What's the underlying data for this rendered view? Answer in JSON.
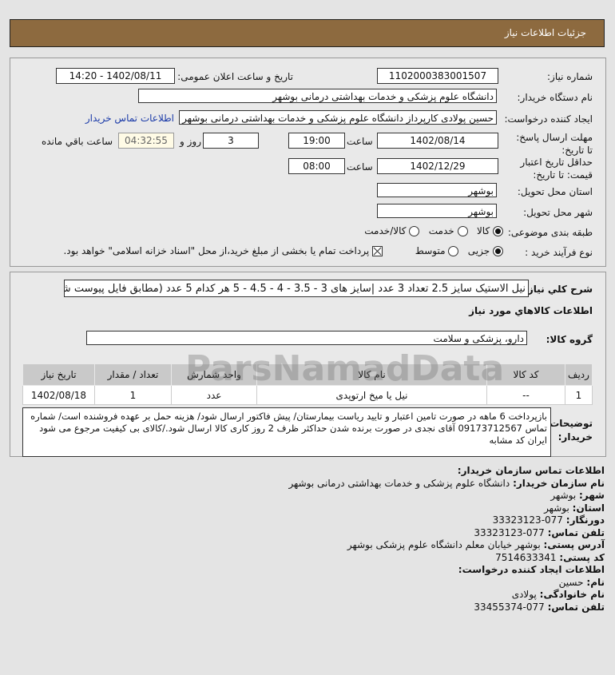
{
  "header": {
    "title": "جزئیات اطلاعات نیاز"
  },
  "form": {
    "need_number_label": "شماره نیاز:",
    "need_number": "1102000383001507",
    "announce_label": "تاریخ و ساعت اعلان عمومی:",
    "announce_value": "1402/08/11 - 14:20",
    "buyer_org_label": "نام دستگاه خریدار:",
    "buyer_org": "دانشگاه علوم پزشکی و خدمات بهداشتی درمانی بوشهر",
    "creator_label": "ایجاد کننده درخواست:",
    "creator": "حسین پولادی کارپرداز دانشگاه علوم پزشکی و خدمات بهداشتی درمانی بوشهر",
    "contact_link": "اطلاعات تماس خریدار",
    "deadline_label": "مهلت ارسال پاسخ: تا تاریخ:",
    "deadline_date": "1402/08/14",
    "time_label": "ساعت",
    "deadline_time": "19:00",
    "days": "3",
    "days_label": "روز و",
    "remaining": "04:32:55",
    "remaining_label": "ساعت باقي مانده",
    "validity_label": "حداقل تاریخ اعتبار قیمت: تا تاریخ:",
    "validity_date": "1402/12/29",
    "validity_time": "08:00",
    "province_label": "استان محل تحویل:",
    "province": "بوشهر",
    "city_label": "شهر محل تحویل:",
    "city": "بوشهر",
    "category_label": "طبقه بندی موضوعی:",
    "category_options": [
      "کالا",
      "خدمت",
      "کالا/خدمت"
    ],
    "category_selected": "کالا",
    "process_label": "نوع فرآیند خرید :",
    "process_options": [
      "جزیی",
      "متوسط"
    ],
    "process_selected": "جزیی",
    "payment_note": "پرداخت تمام یا بخشی از مبلغ خرید،از محل \"اسناد خزانه اسلامی\" خواهد بود."
  },
  "details": {
    "summary_label": "شرح کلي نیاز:",
    "summary": "نیل الاستیک سایز 2.5 تعداد 3 عدد |سایز های 3 - 3.5 - 4 - 4.5 - 5 هر کدام 5 عدد (مطابق فایل پیوست شده)",
    "goods_heading": "اطلاعات کالاهاي مورد نیاز",
    "group_label": "گروه کالا:",
    "group": "دارو، پزشکی و سلامت",
    "table": {
      "headers": [
        "ردیف",
        "کد کالا",
        "نام کالا",
        "واحد شمارش",
        "تعداد / مقدار",
        "تاریخ نیاز"
      ],
      "rows": [
        [
          "1",
          "--",
          "نیل یا میخ ارتوپدی",
          "عدد",
          "1",
          "1402/08/18"
        ]
      ]
    },
    "notes_label": "توضیحات خریدار:",
    "notes": "بازپرداخت 6 ماهه در صورت تامین اعتبار و تایید ریاست بیمارستان/ پیش فاکتور ارسال شود/ هزینه حمل بر عهده فروشنده است/ شماره تماس 09173712567 آقای نجدی در صورت برنده شدن حداکثر ظرف 2 روز کاری کالا ارسال شود./کالای بی کیفیت مرجوع می شود ایران کد مشابه"
  },
  "contact": {
    "heading": "اطلاعات تماس سازمان خریدار:",
    "items": [
      {
        "label": "نام سازمان خریدار:",
        "value": "دانشگاه علوم پزشکی و خدمات بهداشتی درمانی بوشهر"
      },
      {
        "label": "شهر:",
        "value": "بوشهر"
      },
      {
        "label": "استان:",
        "value": "بوشهر"
      },
      {
        "label": "دورنگار:",
        "value": "077-33323123"
      },
      {
        "label": "تلفن تماس:",
        "value": "077-33323123"
      },
      {
        "label": "آدرس پستی:",
        "value": "بوشهر خیابان معلم دانشگاه علوم پزشکی بوشهر"
      },
      {
        "label": "کد پستی:",
        "value": "7514633341"
      }
    ],
    "creator_heading": "اطلاعات ایجاد کننده درخواست:",
    "creator_items": [
      {
        "label": "نام:",
        "value": "حسین"
      },
      {
        "label": "نام خانوادگی:",
        "value": "پولادی"
      },
      {
        "label": "تلفن تماس:",
        "value": "077-33455374"
      }
    ]
  },
  "watermark": "ParsNamadData"
}
